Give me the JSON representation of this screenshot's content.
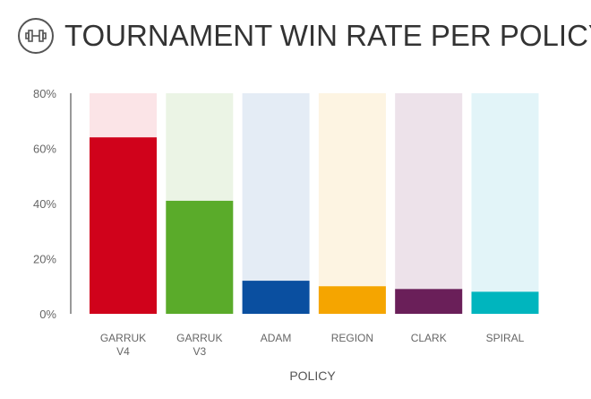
{
  "header": {
    "title": "TOURNAMENT WIN RATE PER POLICY",
    "icon": "dumbbell-icon"
  },
  "chart_data": {
    "type": "bar",
    "title": "TOURNAMENT WIN RATE PER POLICY",
    "xlabel": "POLICY",
    "ylabel": "",
    "ylim": [
      0,
      80
    ],
    "yticks": [
      "0%",
      "20%",
      "40%",
      "60%",
      "80%"
    ],
    "categories": [
      [
        "GARRUK",
        "V4"
      ],
      [
        "GARRUK",
        "V3"
      ],
      [
        "ADAM"
      ],
      [
        "REGION"
      ],
      [
        "CLARK"
      ],
      [
        "SPIRAL"
      ]
    ],
    "values": [
      64,
      41,
      12,
      10,
      9,
      8
    ],
    "colors": [
      "#d0021b",
      "#5aab2a",
      "#0a4fa0",
      "#f5a500",
      "#6a1f59",
      "#00b5be"
    ],
    "background_colors": [
      "#fbe4e7",
      "#ebf4e5",
      "#e4ecf5",
      "#fdf4e2",
      "#ede2ea",
      "#e2f4f8"
    ],
    "grid": false,
    "legend": "none"
  }
}
